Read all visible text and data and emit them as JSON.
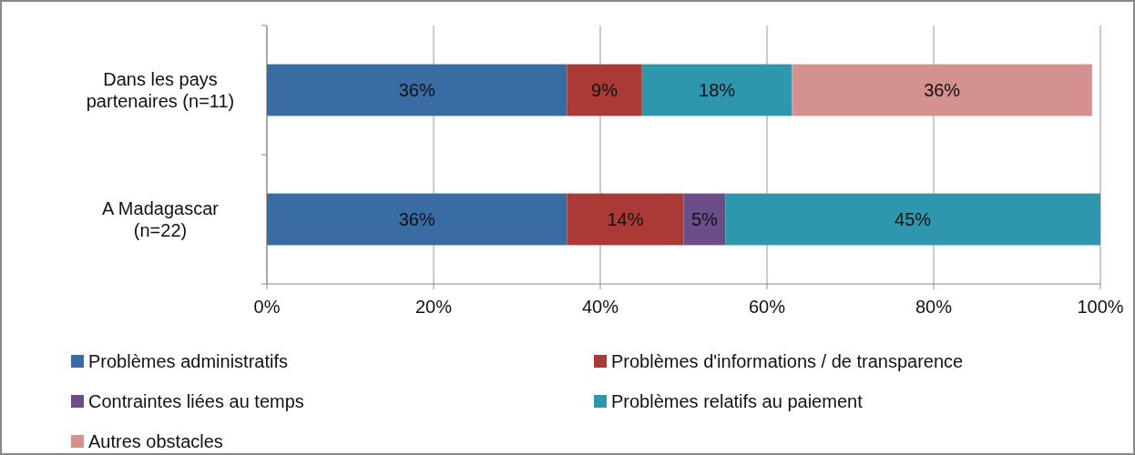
{
  "chart_data": {
    "type": "bar",
    "orientation": "horizontal",
    "stacked": true,
    "categories": [
      "Dans les pays partenaires (n=11)",
      "A Madagascar (n=22)"
    ],
    "series": [
      {
        "name": "Problèmes administratifs",
        "color": "#3a6ca4",
        "values": [
          36,
          36
        ],
        "value_labels": [
          "36%",
          "36%"
        ]
      },
      {
        "name": "Problèmes d'informations / de transparence",
        "color": "#ab3a37",
        "values": [
          9,
          14
        ],
        "value_labels": [
          "9%",
          "14%"
        ]
      },
      {
        "name": "Contraintes liées au temps",
        "color": "#6b4d8a",
        "values": [
          null,
          5
        ],
        "value_labels": [
          null,
          "5%"
        ]
      },
      {
        "name": "Problèmes relatifs au paiement",
        "color": "#2f97ad",
        "values": [
          18,
          45
        ],
        "value_labels": [
          "18%",
          "45%"
        ]
      },
      {
        "name": "Autres obstacles",
        "color": "#d49190",
        "values": [
          36,
          null
        ],
        "value_labels": [
          "36%",
          null
        ]
      }
    ],
    "xlim": [
      0,
      100
    ],
    "xticks": [
      {
        "value": 0,
        "label": "0%"
      },
      {
        "value": 20,
        "label": "20%"
      },
      {
        "value": 40,
        "label": "40%"
      },
      {
        "value": 60,
        "label": "60%"
      },
      {
        "value": 80,
        "label": "80%"
      },
      {
        "value": 100,
        "label": "100%"
      }
    ],
    "grid": "x",
    "legend": "bottom"
  }
}
